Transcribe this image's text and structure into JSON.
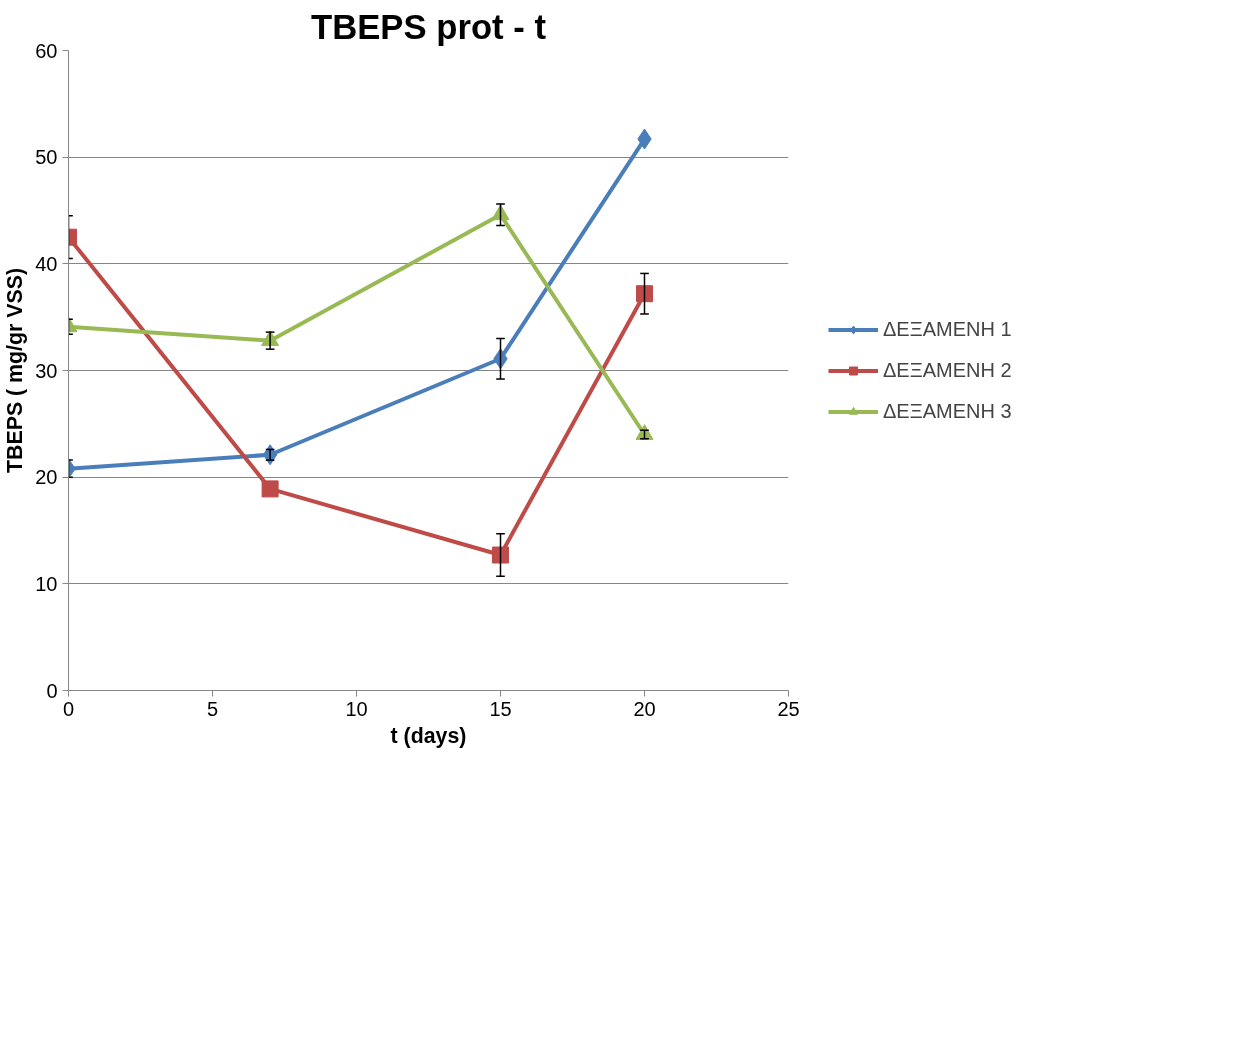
{
  "chart_data": {
    "type": "line",
    "title": "TBEPS prot - t",
    "xlabel": "t (days)",
    "ylabel": "TBEPS ( mg/gr VSS)",
    "x": [
      0,
      7,
      15,
      20
    ],
    "series": [
      {
        "name": "ΔΕΞΑΜΕΝΗ 1",
        "color": "#4a7ebb",
        "marker": "diamond",
        "values": [
          20.8,
          22.1,
          31.1,
          51.7
        ],
        "errors": [
          0.8,
          0.5,
          1.9,
          null
        ]
      },
      {
        "name": "ΔΕΞΑΜΕΝΗ 2",
        "color": "#be4b48",
        "marker": "square",
        "values": [
          42.5,
          18.9,
          12.7,
          37.2
        ],
        "errors": [
          2.0,
          null,
          2.0,
          1.9
        ]
      },
      {
        "name": "ΔΕΞΑΜΕΝΗ 3",
        "color": "#98b954",
        "marker": "triangle",
        "values": [
          34.1,
          32.8,
          44.6,
          24.0
        ],
        "errors": [
          0.7,
          0.8,
          1.0,
          0.4
        ]
      }
    ],
    "xlim": [
      0,
      25
    ],
    "xticks": [
      0,
      5,
      10,
      15,
      20,
      25
    ],
    "ylim": [
      0,
      60
    ],
    "yticks": [
      0,
      10,
      20,
      30,
      40,
      50,
      60
    ],
    "grid": "y",
    "legend": "right",
    "line_style": "solid"
  }
}
